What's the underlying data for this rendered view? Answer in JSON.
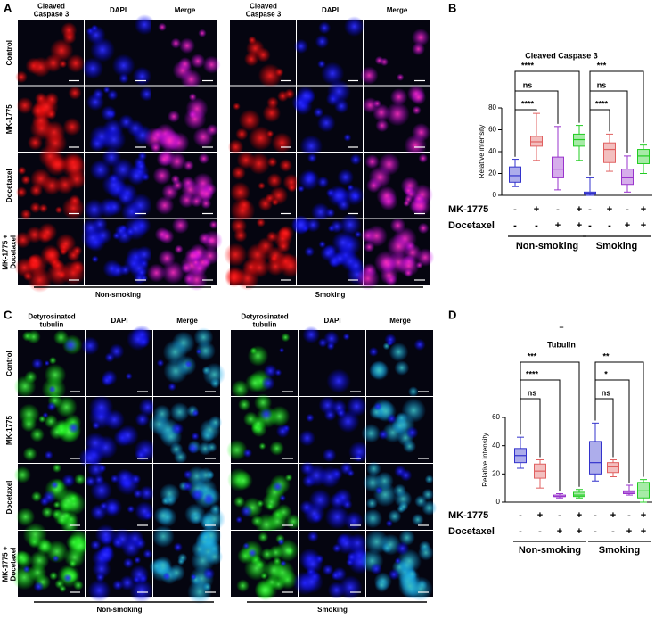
{
  "image_panels": [
    {
      "label": "A",
      "columns": [
        [
          "Cleaved",
          "Caspase 3"
        ],
        [
          "DAPI"
        ],
        [
          "Merge"
        ]
      ],
      "rows": [
        [
          "Control"
        ],
        [
          "MK-1775"
        ],
        [
          "Docetaxel"
        ],
        [
          "MK-1775 +",
          "Docetaxel"
        ]
      ],
      "groups": [
        "Non-smoking",
        "Smoking"
      ]
    },
    {
      "label": "C",
      "columns": [
        [
          "Detyrosinated",
          "tubulin"
        ],
        [
          "DAPI"
        ],
        [
          "Merge"
        ]
      ],
      "rows": [
        [
          "Control"
        ],
        [
          "MK-1775"
        ],
        [
          "Docetaxel"
        ],
        [
          "MK-1775 +",
          "Docetaxel"
        ]
      ],
      "groups": [
        "Non-smoking",
        "Smoking"
      ]
    }
  ],
  "chart_data": [
    {
      "type": "box",
      "label": "B",
      "title": "Cleaved Caspase 3",
      "y_label": "Relative intensity",
      "ylim": [
        0,
        80
      ],
      "yticks": [
        0,
        20,
        40,
        60,
        80
      ],
      "boxes": [
        {
          "color": "#3333cc",
          "min": 8,
          "q1": 12,
          "median": 18,
          "q3": 26,
          "max": 33
        },
        {
          "color": "#e06060",
          "min": 32,
          "q1": 45,
          "median": 49,
          "q3": 54,
          "max": 75
        },
        {
          "color": "#9933cc",
          "min": 5,
          "q1": 16,
          "median": 24,
          "q3": 35,
          "max": 63
        },
        {
          "color": "#22cc22",
          "min": 32,
          "q1": 45,
          "median": 51,
          "q3": 56,
          "max": 64
        },
        {
          "color": "#3333cc",
          "min": 0,
          "q1": 1,
          "median": 2,
          "q3": 3,
          "max": 16
        },
        {
          "color": "#e06060",
          "min": 22,
          "q1": 30,
          "median": 42,
          "q3": 48,
          "max": 56
        },
        {
          "color": "#9933cc",
          "min": 3,
          "q1": 10,
          "median": 16,
          "q3": 24,
          "max": 36
        },
        {
          "color": "#22cc22",
          "min": 20,
          "q1": 29,
          "median": 36,
          "q3": 42,
          "max": 46
        }
      ],
      "annotations": [
        "****",
        "ns",
        "****",
        "***",
        "ns",
        "****"
      ],
      "conditions": [
        {
          "name": "MK-1775",
          "signs": [
            "-",
            "+",
            "-",
            "+",
            "-",
            "+",
            "-",
            "+"
          ]
        },
        {
          "name": "Docetaxel",
          "signs": [
            "-",
            "-",
            "+",
            "+",
            "-",
            "-",
            "+",
            "+"
          ]
        }
      ],
      "groups": [
        "Non-smoking",
        "Smoking"
      ]
    },
    {
      "type": "box",
      "label": "D",
      "title_mark": "–",
      "title": "Tubulin",
      "y_label": "Relative intensity",
      "ylim": [
        0,
        60
      ],
      "yticks": [
        0,
        20,
        40,
        60
      ],
      "boxes": [
        {
          "color": "#3333cc",
          "min": 24,
          "q1": 28,
          "median": 33,
          "q3": 38,
          "max": 46
        },
        {
          "color": "#e06060",
          "min": 10,
          "q1": 17,
          "median": 22,
          "q3": 27,
          "max": 30
        },
        {
          "color": "#9933cc",
          "min": 3,
          "q1": 4,
          "median": 4,
          "q3": 5,
          "max": 6
        },
        {
          "color": "#22cc22",
          "min": 3,
          "q1": 4,
          "median": 5,
          "q3": 7,
          "max": 9
        },
        {
          "color": "#3333cc",
          "min": 15,
          "q1": 20,
          "median": 28,
          "q3": 43,
          "max": 56
        },
        {
          "color": "#e06060",
          "min": 18,
          "q1": 21,
          "median": 25,
          "q3": 28,
          "max": 30
        },
        {
          "color": "#9933cc",
          "min": 5,
          "q1": 6,
          "median": 7,
          "q3": 8,
          "max": 12
        },
        {
          "color": "#22cc22",
          "min": 0,
          "q1": 3,
          "median": 8,
          "q3": 14,
          "max": 16
        }
      ],
      "annotations": [
        "***",
        "****",
        "ns",
        "**",
        "*",
        "ns"
      ],
      "conditions": [
        {
          "name": "MK-1775",
          "signs": [
            "-",
            "+",
            "-",
            "+",
            "-",
            "+",
            "-",
            "+"
          ]
        },
        {
          "name": "Docetaxel",
          "signs": [
            "-",
            "-",
            "+",
            "+",
            "-",
            "-",
            "+",
            "+"
          ]
        }
      ],
      "groups": [
        "Non-smoking",
        "Smoking"
      ]
    }
  ]
}
